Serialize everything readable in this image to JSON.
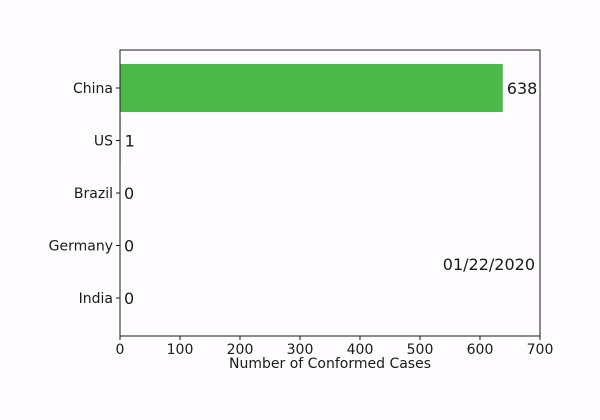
{
  "chart_data": {
    "type": "bar",
    "orientation": "horizontal",
    "categories": [
      "China",
      "US",
      "Brazil",
      "Germany",
      "India"
    ],
    "values": [
      638,
      1,
      0,
      0,
      0
    ],
    "xlabel": "Number of Conformed Cases",
    "ylabel": "",
    "xlim": [
      0,
      700
    ],
    "xticks": [
      "0",
      "100",
      "200",
      "300",
      "400",
      "500",
      "600",
      "700"
    ],
    "grid": false,
    "annotation": "01/22/2020",
    "bar_color": "#4cb84a"
  }
}
